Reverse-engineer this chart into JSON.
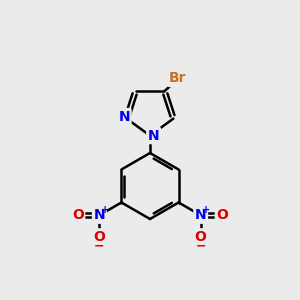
{
  "background_color": "#ebebeb",
  "bond_color": "#000000",
  "bond_width": 1.8,
  "atoms": {
    "Br": {
      "color": "#c87020",
      "fontsize": 10,
      "fontweight": "bold"
    },
    "N": {
      "color": "#0000ee",
      "fontsize": 10,
      "fontweight": "bold"
    },
    "O": {
      "color": "#dd0000",
      "fontsize": 10,
      "fontweight": "bold"
    }
  },
  "figsize": [
    3.0,
    3.0
  ],
  "dpi": 100,
  "xlim": [
    0,
    10
  ],
  "ylim": [
    0,
    10
  ]
}
